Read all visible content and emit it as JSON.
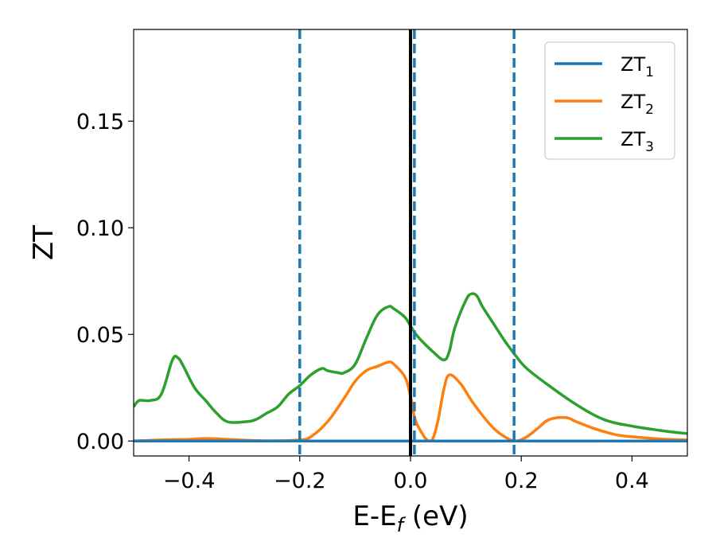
{
  "chart_data": {
    "type": "line",
    "xlabel_main": "E-E",
    "xlabel_sub": "f",
    "xlabel_unit": " (eV)",
    "ylabel": "ZT",
    "xlim": [
      -0.5,
      0.5
    ],
    "ylim": [
      -0.007,
      0.193
    ],
    "x_ticks": [
      -0.4,
      -0.2,
      0.0,
      0.2,
      0.4
    ],
    "x_tick_labels": [
      "−0.4",
      "−0.2",
      "0.0",
      "0.2",
      "0.4"
    ],
    "y_ticks": [
      0.0,
      0.05,
      0.1,
      0.15
    ],
    "y_tick_labels": [
      "0.00",
      "0.05",
      "0.10",
      "0.15"
    ],
    "grid": false,
    "legend_position": "top-right",
    "vlines_dashed": [
      -0.2,
      0.007,
      0.187
    ],
    "vline_solid": 0.0,
    "series": [
      {
        "name_main": "ZT",
        "name_sub": "1",
        "color": "#1f77b4",
        "x": [
          -0.5,
          -0.4,
          -0.3,
          -0.2,
          -0.1,
          0.0,
          0.1,
          0.2,
          0.3,
          0.4,
          0.5
        ],
        "y": [
          0.0,
          0.0,
          0.0,
          0.0,
          0.0,
          0.0,
          0.0,
          0.0,
          0.0,
          0.0,
          0.0
        ]
      },
      {
        "name_main": "ZT",
        "name_sub": "2",
        "color": "#ff7f0e",
        "x": [
          -0.5,
          -0.45,
          -0.4,
          -0.37,
          -0.33,
          -0.3,
          -0.25,
          -0.2,
          -0.18,
          -0.15,
          -0.12,
          -0.1,
          -0.08,
          -0.06,
          -0.04,
          -0.03,
          -0.01,
          0.0,
          0.005,
          0.01,
          0.02,
          0.03,
          0.04,
          0.05,
          0.06,
          0.07,
          0.09,
          0.11,
          0.13,
          0.15,
          0.17,
          0.19,
          0.21,
          0.23,
          0.25,
          0.28,
          0.3,
          0.33,
          0.37,
          0.4,
          0.45,
          0.5
        ],
        "y": [
          0.0,
          0.0005,
          0.0008,
          0.0012,
          0.0008,
          0.0004,
          0.0001,
          0.0005,
          0.002,
          0.009,
          0.02,
          0.028,
          0.033,
          0.035,
          0.037,
          0.036,
          0.03,
          0.021,
          0.014,
          0.009,
          0.004,
          0.0005,
          0.001,
          0.01,
          0.024,
          0.031,
          0.027,
          0.019,
          0.012,
          0.006,
          0.002,
          0.0,
          0.002,
          0.006,
          0.01,
          0.011,
          0.009,
          0.006,
          0.003,
          0.002,
          0.001,
          0.0005
        ]
      },
      {
        "name_main": "ZT",
        "name_sub": "3",
        "color": "#2ca02c",
        "x": [
          -0.5,
          -0.49,
          -0.47,
          -0.45,
          -0.43,
          -0.42,
          -0.41,
          -0.39,
          -0.37,
          -0.35,
          -0.33,
          -0.3,
          -0.28,
          -0.26,
          -0.24,
          -0.22,
          -0.2,
          -0.18,
          -0.16,
          -0.15,
          -0.13,
          -0.12,
          -0.1,
          -0.08,
          -0.06,
          -0.04,
          -0.03,
          -0.01,
          0.0,
          0.01,
          0.02,
          0.04,
          0.06,
          0.07,
          0.08,
          0.1,
          0.11,
          0.12,
          0.13,
          0.15,
          0.17,
          0.19,
          0.21,
          0.25,
          0.3,
          0.35,
          0.4,
          0.45,
          0.48,
          0.5
        ],
        "y": [
          0.016,
          0.019,
          0.019,
          0.022,
          0.038,
          0.039,
          0.035,
          0.025,
          0.019,
          0.013,
          0.009,
          0.009,
          0.01,
          0.013,
          0.016,
          0.022,
          0.026,
          0.031,
          0.034,
          0.033,
          0.032,
          0.032,
          0.036,
          0.048,
          0.059,
          0.063,
          0.062,
          0.058,
          0.054,
          0.05,
          0.047,
          0.042,
          0.038,
          0.042,
          0.053,
          0.066,
          0.069,
          0.068,
          0.063,
          0.055,
          0.047,
          0.04,
          0.034,
          0.026,
          0.017,
          0.01,
          0.007,
          0.005,
          0.004,
          0.0035
        ]
      }
    ]
  }
}
